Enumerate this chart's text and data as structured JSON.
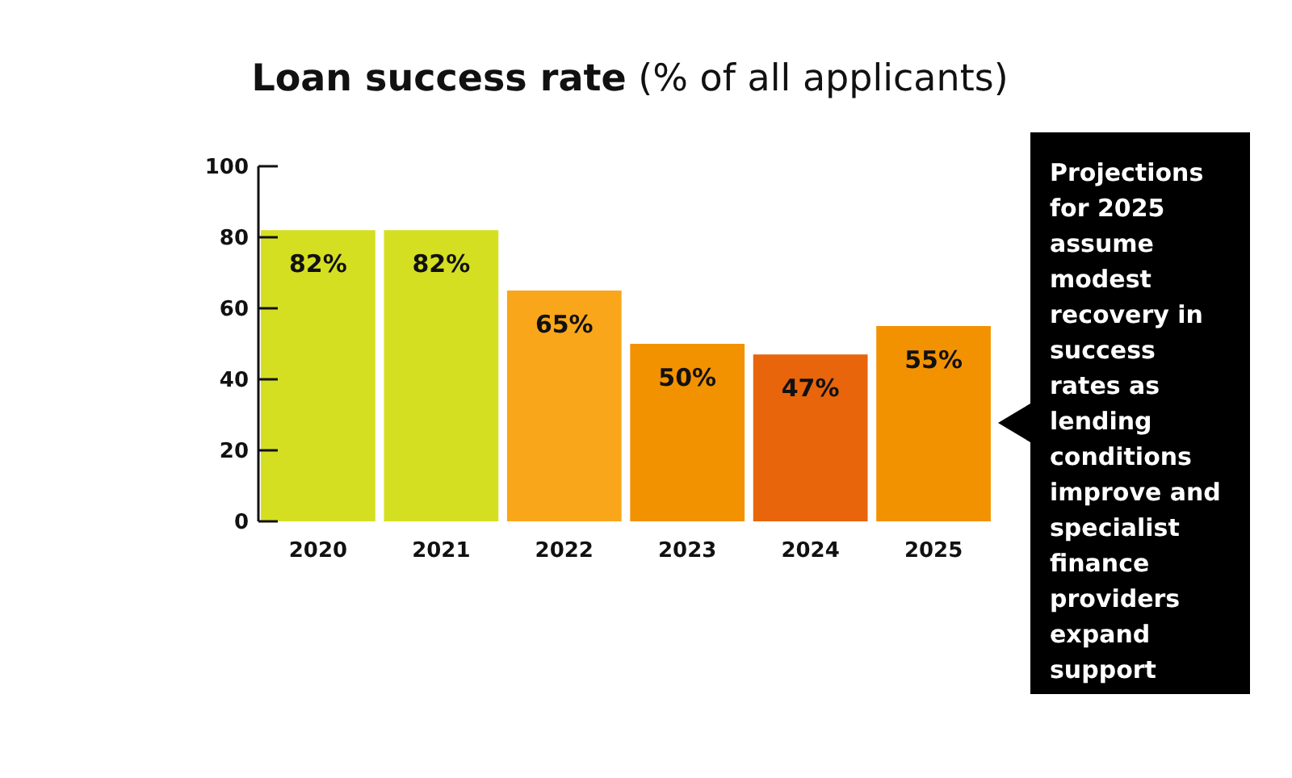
{
  "chart_data": {
    "type": "bar",
    "title": "Loan success rate",
    "subtitle": "(% of all applicants)",
    "categories": [
      "2020",
      "2021",
      "2022",
      "2023",
      "2024",
      "2025"
    ],
    "values": [
      82,
      82,
      65,
      50,
      47,
      55
    ],
    "colors": [
      "#d5df22",
      "#d5df22",
      "#f9a61b",
      "#f39200",
      "#e8650c",
      "#f39200"
    ],
    "value_labels": [
      "82%",
      "82%",
      "65%",
      "50%",
      "47%",
      "55%"
    ],
    "ylim": [
      0,
      100
    ],
    "yticks": [
      0,
      20,
      40,
      60,
      80,
      100
    ],
    "grid": false,
    "annotations": [
      "Projections for 2025 assume modest recovery in success rates as lending conditions improve and specialist finance providers expand support"
    ]
  }
}
